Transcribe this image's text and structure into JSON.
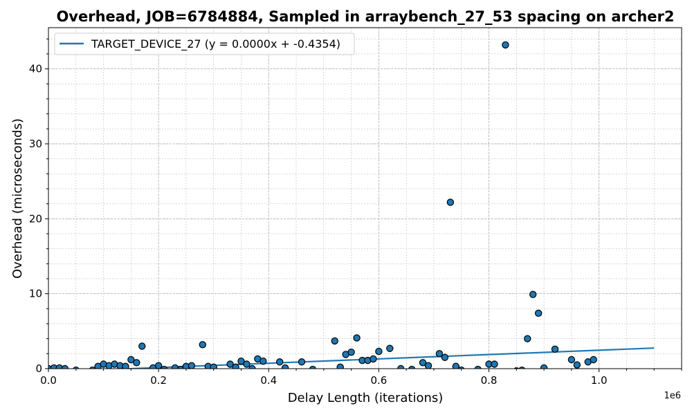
{
  "chart_data": {
    "type": "scatter",
    "title": "Overhead, JOB=6784884, Sampled in arraybench_27_53 spacing on archer2",
    "xlabel": "Delay Length (iterations)",
    "ylabel": "Overhead (microseconds)",
    "x_offset_label": "1e6",
    "xlim": [
      0,
      1150000
    ],
    "ylim": [
      0,
      45.5
    ],
    "xticks": [
      0,
      200000,
      400000,
      600000,
      800000,
      1000000
    ],
    "xtick_labels": [
      "0.0",
      "0.2",
      "0.4",
      "0.6",
      "0.8",
      "1.0"
    ],
    "yticks": [
      0,
      10,
      20,
      30,
      40
    ],
    "ytick_labels": [
      "0",
      "10",
      "20",
      "30",
      "40"
    ],
    "grid": true,
    "legend_position": "top-left",
    "colors": {
      "series": "#1f77b4",
      "marker_edge": "#000000",
      "grid": "#b0b0b0"
    },
    "series": [
      {
        "name": "TARGET_DEVICE_27 (y = 0.0000x + -0.4354)",
        "type": "line",
        "x": [
          0,
          1100000
        ],
        "y": [
          -0.4354,
          2.75
        ]
      },
      {
        "type": "scatter",
        "points": [
          [
            0,
            0.0
          ],
          [
            10000,
            0.1
          ],
          [
            20000,
            0.1
          ],
          [
            30000,
            0.0
          ],
          [
            50000,
            -0.2
          ],
          [
            80000,
            -0.2
          ],
          [
            90000,
            0.3
          ],
          [
            100000,
            0.6
          ],
          [
            110000,
            0.4
          ],
          [
            120000,
            0.6
          ],
          [
            130000,
            0.4
          ],
          [
            140000,
            0.3
          ],
          [
            150000,
            1.2
          ],
          [
            160000,
            0.8
          ],
          [
            170000,
            3.0
          ],
          [
            190000,
            0.1
          ],
          [
            200000,
            0.4
          ],
          [
            210000,
            -0.1
          ],
          [
            230000,
            0.1
          ],
          [
            240000,
            -0.1
          ],
          [
            250000,
            0.3
          ],
          [
            260000,
            0.4
          ],
          [
            280000,
            3.2
          ],
          [
            290000,
            0.3
          ],
          [
            300000,
            0.2
          ],
          [
            330000,
            0.6
          ],
          [
            340000,
            0.2
          ],
          [
            350000,
            1.0
          ],
          [
            360000,
            0.6
          ],
          [
            370000,
            0.0
          ],
          [
            380000,
            1.3
          ],
          [
            390000,
            1.0
          ],
          [
            420000,
            0.9
          ],
          [
            430000,
            0.1
          ],
          [
            460000,
            0.9
          ],
          [
            480000,
            -0.1
          ],
          [
            520000,
            3.7
          ],
          [
            530000,
            0.2
          ],
          [
            540000,
            1.9
          ],
          [
            550000,
            2.2
          ],
          [
            560000,
            4.1
          ],
          [
            570000,
            1.1
          ],
          [
            580000,
            1.1
          ],
          [
            590000,
            1.3
          ],
          [
            600000,
            2.3
          ],
          [
            620000,
            2.7
          ],
          [
            640000,
            0.0
          ],
          [
            660000,
            -0.1
          ],
          [
            680000,
            0.8
          ],
          [
            690000,
            0.4
          ],
          [
            710000,
            2.0
          ],
          [
            720000,
            1.5
          ],
          [
            730000,
            22.2
          ],
          [
            740000,
            0.3
          ],
          [
            750000,
            -0.2
          ],
          [
            780000,
            -0.1
          ],
          [
            800000,
            0.6
          ],
          [
            810000,
            0.6
          ],
          [
            830000,
            43.2
          ],
          [
            850000,
            -0.3
          ],
          [
            860000,
            -0.2
          ],
          [
            870000,
            4.0
          ],
          [
            880000,
            9.9
          ],
          [
            890000,
            7.4
          ],
          [
            900000,
            0.1
          ],
          [
            920000,
            2.6
          ],
          [
            950000,
            1.2
          ],
          [
            960000,
            0.5
          ],
          [
            980000,
            0.9
          ],
          [
            990000,
            1.2
          ]
        ]
      }
    ]
  }
}
